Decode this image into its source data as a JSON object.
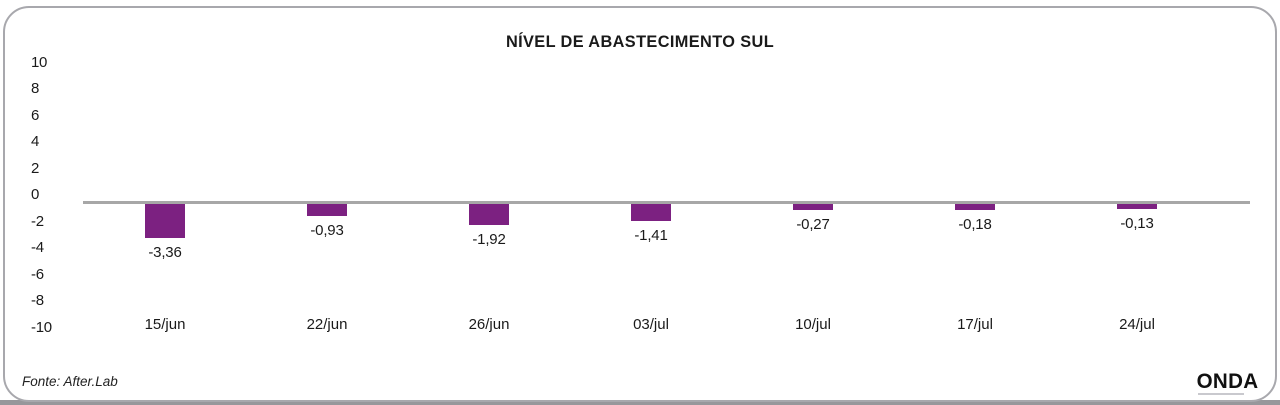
{
  "chart_data": {
    "type": "bar",
    "title": "NÍVEL DE ABASTECIMENTO SUL",
    "categories": [
      "15/jun",
      "22/jun",
      "26/jun",
      "03/jul",
      "10/jul",
      "17/jul",
      "24/jul"
    ],
    "values": [
      -3.36,
      -0.93,
      -1.92,
      -1.41,
      -0.27,
      -0.18,
      -0.13
    ],
    "value_labels": [
      "-3,36",
      "-0,93",
      "-1,92",
      "-1,41",
      "-0,27",
      "-0,18",
      "-0,13"
    ],
    "xlabel": "",
    "ylabel": "",
    "ylim": [
      -10,
      10
    ],
    "y_ticks": [
      "10",
      "8",
      "6",
      "4",
      "2",
      "0",
      "-2",
      "-4",
      "-6",
      "-8",
      "-10"
    ],
    "grid": false,
    "legend": "none",
    "bar_color": "#7c2181",
    "axis_line_color": "#a7a7a7"
  },
  "footer": {
    "source": "Fonte: After.Lab",
    "brand": "ONDA"
  }
}
